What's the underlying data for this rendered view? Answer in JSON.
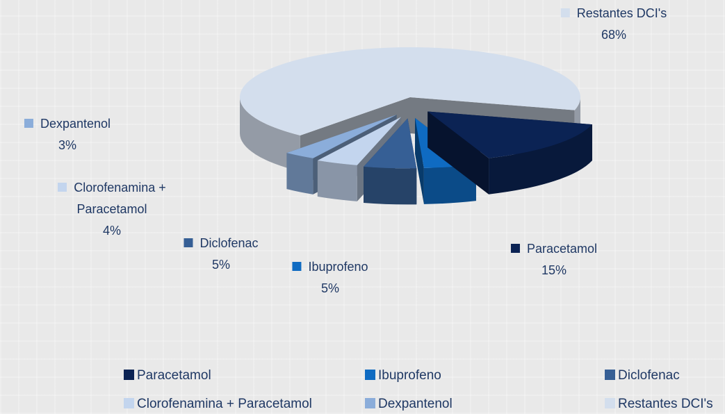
{
  "chart_data": {
    "type": "pie",
    "categories": [
      "Paracetamol",
      "Ibuprofeno",
      "Diclofenac",
      "Clorofenamina + Paracetamol",
      "Dexpantenol",
      "Restantes DCI's"
    ],
    "values": [
      15,
      5,
      5,
      4,
      3,
      68
    ],
    "value_labels": [
      "15%",
      "5%",
      "5%",
      "4%",
      "3%",
      "68%"
    ],
    "colors": [
      "#0b2354",
      "#0f6bc2",
      "#365f95",
      "#c3d5ee",
      "#8badda",
      "#d3deed"
    ],
    "legend": "bottom"
  }
}
